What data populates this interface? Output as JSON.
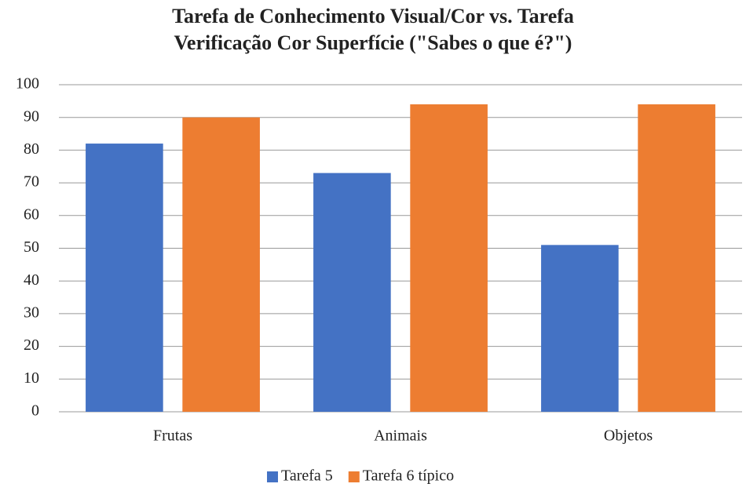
{
  "chart_data": {
    "type": "bar",
    "title": "Tarefa de Conhecimento Visual/Cor vs. Tarefa Verificação Cor Superfície (\"Sabes o que é?\")",
    "categories": [
      "Frutas",
      "Animais",
      "Objetos"
    ],
    "series": [
      {
        "name": "Tarefa 5",
        "color": "#4472c4",
        "values": [
          82,
          73,
          51
        ]
      },
      {
        "name": "Tarefa 6 típico",
        "color": "#ed7d31",
        "values": [
          90,
          94,
          94
        ]
      }
    ],
    "ylim": [
      0,
      100
    ],
    "yticks": [
      0,
      10,
      20,
      30,
      40,
      50,
      60,
      70,
      80,
      90,
      100
    ],
    "grid": true,
    "legend": "bottom"
  }
}
